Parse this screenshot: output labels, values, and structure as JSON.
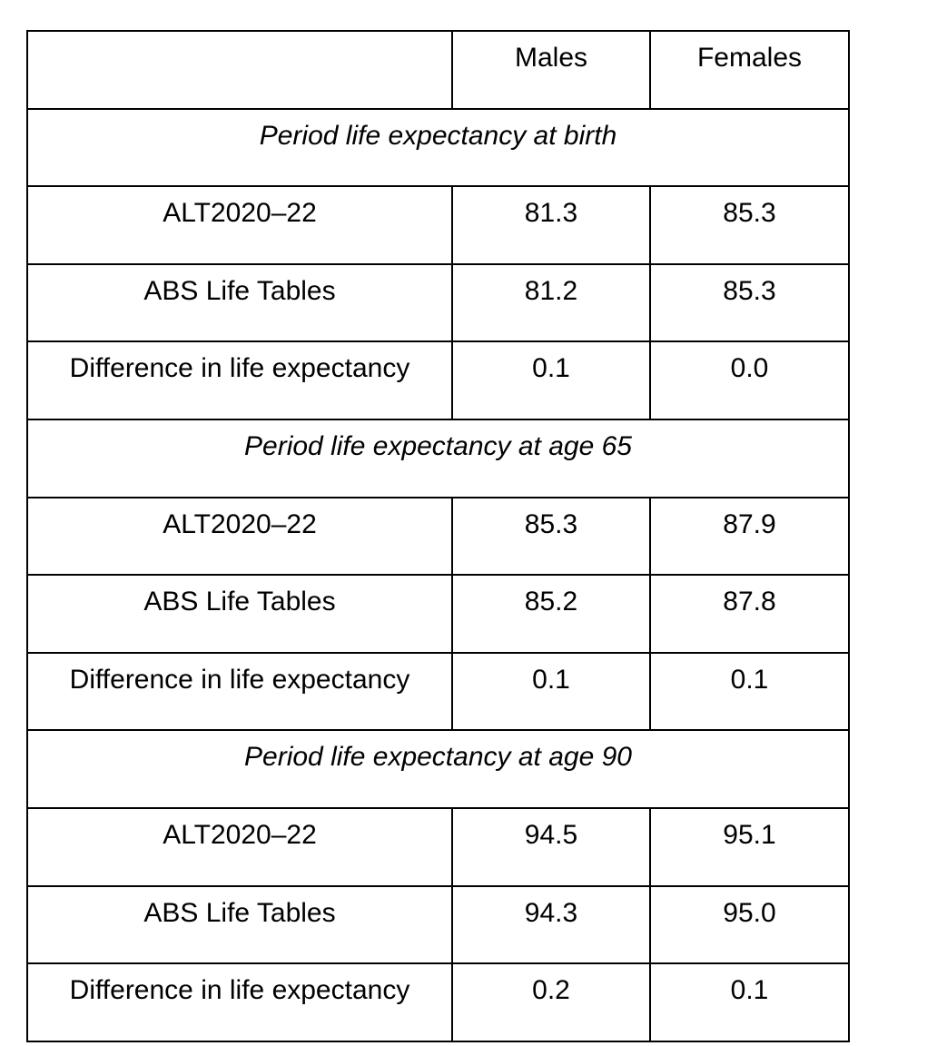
{
  "header": {
    "blank": "",
    "males": "Males",
    "females": "Females"
  },
  "sections": [
    {
      "title": "Period life expectancy at birth",
      "rows": [
        {
          "label": "ALT2020–22",
          "males": "81.3",
          "females": "85.3"
        },
        {
          "label": "ABS Life Tables",
          "males": "81.2",
          "females": "85.3"
        },
        {
          "label": "Difference in life expectancy",
          "males": "0.1",
          "females": "0.0"
        }
      ]
    },
    {
      "title": "Period life expectancy at age 65",
      "rows": [
        {
          "label": "ALT2020–22",
          "males": "85.3",
          "females": "87.9"
        },
        {
          "label": "ABS Life Tables",
          "males": "85.2",
          "females": "87.8"
        },
        {
          "label": "Difference in life expectancy",
          "males": "0.1",
          "females": "0.1"
        }
      ]
    },
    {
      "title": "Period life expectancy at age 90",
      "rows": [
        {
          "label": "ALT2020–22",
          "males": "94.5",
          "females": "95.1"
        },
        {
          "label": "ABS Life Tables",
          "males": "94.3",
          "females": "95.0"
        },
        {
          "label": "Difference in life expectancy",
          "males": "0.2",
          "females": "0.1"
        }
      ]
    }
  ]
}
